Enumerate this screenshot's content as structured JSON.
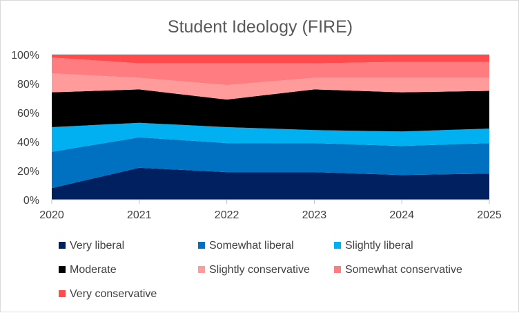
{
  "chart_data": {
    "type": "area",
    "stacked": true,
    "title": "Student Ideology (FIRE)",
    "xlabel": "",
    "ylabel": "",
    "x": [
      "2020",
      "2021",
      "2022",
      "2023",
      "2024",
      "2025"
    ],
    "ylim": [
      0,
      100
    ],
    "yticks": [
      "0%",
      "20%",
      "40%",
      "60%",
      "80%",
      "100%"
    ],
    "grid": true,
    "legend_position": "bottom",
    "series": [
      {
        "name": "Very liberal",
        "color": "#002060",
        "values": [
          8,
          22,
          19,
          19,
          17,
          18
        ]
      },
      {
        "name": "Somewhat liberal",
        "color": "#0070C0",
        "values": [
          25,
          21,
          20,
          20,
          20,
          21
        ]
      },
      {
        "name": "Slightly liberal",
        "color": "#00B0F0",
        "values": [
          17,
          10,
          11,
          9,
          10,
          10
        ]
      },
      {
        "name": "Moderate",
        "color": "#000000",
        "values": [
          24,
          23,
          19,
          28,
          27,
          26
        ]
      },
      {
        "name": "Slightly conservative",
        "color": "#FF9B9B",
        "values": [
          13,
          8,
          10,
          8,
          10,
          9
        ]
      },
      {
        "name": "Somewhat conservative",
        "color": "#FF7C80",
        "values": [
          11,
          10,
          15,
          10,
          11,
          11
        ]
      },
      {
        "name": "Very conservative",
        "color": "#FF4B4B",
        "values": [
          2,
          6,
          6,
          6,
          5,
          5
        ]
      }
    ]
  }
}
